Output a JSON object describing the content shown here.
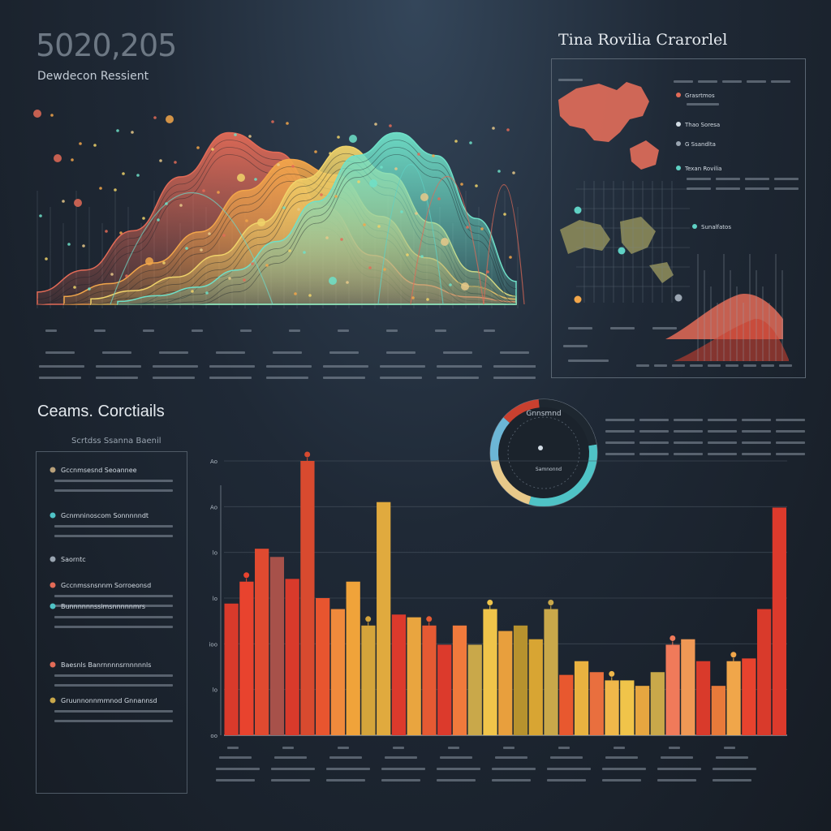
{
  "header": {
    "big_number": "5020,205",
    "subtitle": "Dewdecon Ressient"
  },
  "map_panel": {
    "title": "Tina Rovilia Crarorlel",
    "legend": [
      {
        "text": "Grasrtmos",
        "color": "#e36b57"
      },
      {
        "text": "Thao Soresa",
        "color": "#d3dde6"
      },
      {
        "text": "G Ssandlta",
        "color": "#9aa5b1"
      },
      {
        "text": "Texan Rovilia",
        "color": "#5fd1c4"
      },
      {
        "text": "Sunalfatos",
        "color": "#5fd1c4"
      }
    ]
  },
  "section": {
    "title": "Ceams. Corctiails",
    "subtitle": "Scrtdss Ssanna Baenil"
  },
  "legend_panel": {
    "items": [
      {
        "text": "Gccnmsesnd Seoannee",
        "color": "#b8a07a"
      },
      {
        "text": "Gcnmninoscom Sonnnnndt",
        "color": "#4fc3c6"
      },
      {
        "text": "Saorntc",
        "color": "#9aa5b1"
      },
      {
        "text": "Gccnmssnsnnm Sorroeonsd",
        "color": "#e36b57"
      },
      {
        "text": "Bunnnnnnssimsnnnnnmrs",
        "color": "#4fc3c6"
      },
      {
        "text": "Baesnls Banrnnnnsrnnnnnls",
        "color": "#e36b57"
      },
      {
        "text": "Gruunnonnmmnod Gnnannsd",
        "color": "#c9a84a"
      }
    ]
  },
  "gauge": {
    "title": "Gnnsmnd",
    "value_label": "Samnonnd",
    "segments": [
      {
        "value": 0.32,
        "color": "#4fc3c6"
      },
      {
        "value": 0.18,
        "color": "#e8c98a"
      },
      {
        "value": 0.14,
        "color": "#6cb6d6"
      },
      {
        "value": 0.12,
        "color": "#c9402f"
      },
      {
        "value": 0.24,
        "color": "#1e2730"
      }
    ]
  },
  "chart_data": [
    {
      "type": "area",
      "title": "",
      "series": [
        {
          "color": "#e36b57",
          "values": [
            5,
            14,
            30,
            52,
            70,
            62,
            40,
            20,
            8,
            3,
            1
          ]
        },
        {
          "color": "#f2a64a",
          "values": [
            3,
            8,
            16,
            28,
            44,
            56,
            50,
            34,
            18,
            7,
            2
          ]
        },
        {
          "color": "#f0d36a",
          "values": [
            2,
            5,
            10,
            18,
            30,
            46,
            58,
            48,
            30,
            12,
            3
          ]
        },
        {
          "color": "#6fe0c8",
          "values": [
            1,
            3,
            6,
            12,
            22,
            36,
            52,
            60,
            52,
            30,
            8
          ]
        }
      ]
    },
    {
      "type": "bar",
      "title": "",
      "ylabel": "",
      "ylim": [
        0,
        100
      ],
      "y_ticks": [
        "Ao",
        "Ao",
        "lo",
        "lo",
        "ioo",
        "lo",
        "oo"
      ],
      "values": [
        48,
        56,
        68,
        65,
        57,
        100,
        50,
        46,
        56,
        40,
        85,
        44,
        43,
        40,
        33,
        40,
        33,
        46,
        38,
        40,
        35,
        46,
        22,
        27,
        23,
        20,
        20,
        18,
        23,
        33,
        35,
        27,
        18,
        27,
        28,
        46,
        83
      ],
      "colors": [
        "#d93a2b",
        "#e8432e",
        "#e04a30",
        "#a7514a",
        "#d93a2b",
        "#d84a2f",
        "#e8552f",
        "#f08a3c",
        "#f0a33a",
        "#d4a43b",
        "#e0aa3e",
        "#dc3a2c",
        "#e9a53f",
        "#e55a33",
        "#dc3a2c",
        "#f07a3c",
        "#c9a84a",
        "#f0c44a",
        "#e89f3d",
        "#b7922e",
        "#d8a533",
        "#c9a84a",
        "#e8582f",
        "#e9b240",
        "#e96f3e",
        "#f0b84a",
        "#f0c44a",
        "#e6a640",
        "#c9a84a",
        "#f07a5a",
        "#ef9855",
        "#d93a2b",
        "#e87a3a",
        "#f0a64a",
        "#e8432e",
        "#d93a2b",
        "#dc3a2c"
      ]
    }
  ]
}
